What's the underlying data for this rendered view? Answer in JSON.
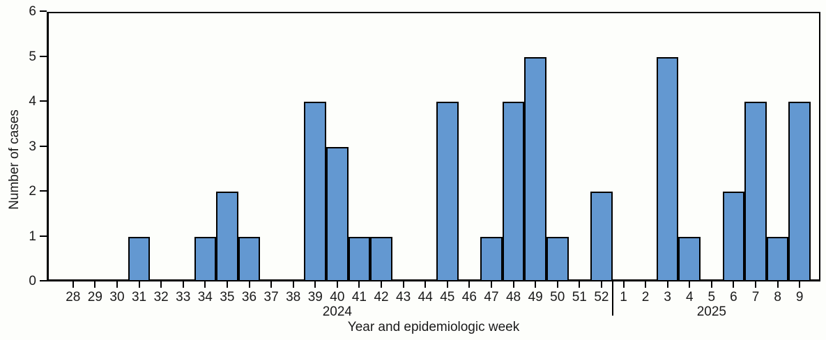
{
  "chart_data": {
    "type": "bar",
    "title": "",
    "xlabel": "Year and epidemiologic week",
    "ylabel": "Number of cases",
    "ylim": [
      0,
      6
    ],
    "yticks": [
      0,
      1,
      2,
      3,
      4,
      5,
      6
    ],
    "grid": false,
    "legend_position": "none",
    "bar_fill_color": "#6398D1",
    "bar_stroke_color": "#000000",
    "axis_color": "#000000",
    "categories": [
      "28",
      "29",
      "30",
      "31",
      "32",
      "33",
      "34",
      "35",
      "36",
      "37",
      "38",
      "39",
      "40",
      "41",
      "42",
      "43",
      "44",
      "45",
      "46",
      "47",
      "48",
      "49",
      "50",
      "51",
      "52",
      "1",
      "2",
      "3",
      "4",
      "5",
      "6",
      "7",
      "8",
      "9"
    ],
    "values": [
      0,
      0,
      0,
      1,
      0,
      0,
      1,
      2,
      1,
      0,
      0,
      4,
      3,
      1,
      1,
      0,
      0,
      4,
      0,
      1,
      4,
      5,
      1,
      0,
      2,
      0,
      0,
      5,
      1,
      0,
      2,
      4,
      1,
      4
    ],
    "series": [
      {
        "name": "Number of cases",
        "points": [
          {
            "year": "2024",
            "week": 28,
            "value": 0
          },
          {
            "year": "2024",
            "week": 29,
            "value": 0
          },
          {
            "year": "2024",
            "week": 30,
            "value": 0
          },
          {
            "year": "2024",
            "week": 31,
            "value": 1
          },
          {
            "year": "2024",
            "week": 32,
            "value": 0
          },
          {
            "year": "2024",
            "week": 33,
            "value": 0
          },
          {
            "year": "2024",
            "week": 34,
            "value": 1
          },
          {
            "year": "2024",
            "week": 35,
            "value": 2
          },
          {
            "year": "2024",
            "week": 36,
            "value": 1
          },
          {
            "year": "2024",
            "week": 37,
            "value": 0
          },
          {
            "year": "2024",
            "week": 38,
            "value": 0
          },
          {
            "year": "2024",
            "week": 39,
            "value": 4
          },
          {
            "year": "2024",
            "week": 40,
            "value": 3
          },
          {
            "year": "2024",
            "week": 41,
            "value": 1
          },
          {
            "year": "2024",
            "week": 42,
            "value": 1
          },
          {
            "year": "2024",
            "week": 43,
            "value": 0
          },
          {
            "year": "2024",
            "week": 44,
            "value": 0
          },
          {
            "year": "2024",
            "week": 45,
            "value": 4
          },
          {
            "year": "2024",
            "week": 46,
            "value": 0
          },
          {
            "year": "2024",
            "week": 47,
            "value": 1
          },
          {
            "year": "2024",
            "week": 48,
            "value": 4
          },
          {
            "year": "2024",
            "week": 49,
            "value": 5
          },
          {
            "year": "2024",
            "week": 50,
            "value": 1
          },
          {
            "year": "2024",
            "week": 51,
            "value": 0
          },
          {
            "year": "2024",
            "week": 52,
            "value": 2
          },
          {
            "year": "2025",
            "week": 1,
            "value": 0
          },
          {
            "year": "2025",
            "week": 2,
            "value": 0
          },
          {
            "year": "2025",
            "week": 3,
            "value": 5
          },
          {
            "year": "2025",
            "week": 4,
            "value": 1
          },
          {
            "year": "2025",
            "week": 5,
            "value": 0
          },
          {
            "year": "2025",
            "week": 6,
            "value": 2
          },
          {
            "year": "2025",
            "week": 7,
            "value": 4
          },
          {
            "year": "2025",
            "week": 8,
            "value": 1
          },
          {
            "year": "2025",
            "week": 9,
            "value": 4
          }
        ]
      }
    ],
    "year_annotations": [
      {
        "label": "2024",
        "center_category_index": 12
      },
      {
        "label": "2025",
        "center_category_index": 29
      }
    ],
    "year_separator_after_index": 24
  }
}
